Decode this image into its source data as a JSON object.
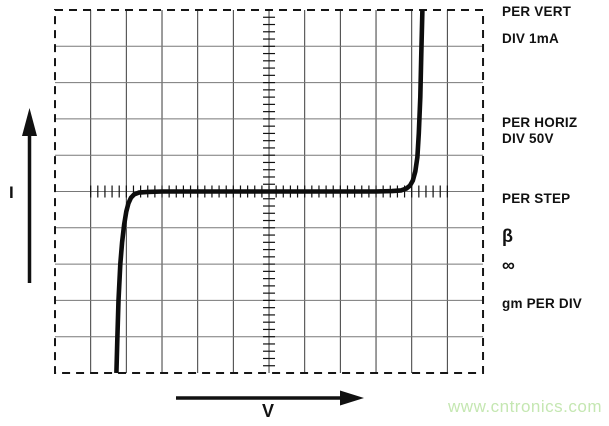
{
  "y_axis": {
    "label": "I"
  },
  "x_axis": {
    "label": "V"
  },
  "readout_panel": {
    "per_vert_label": "PER VERT",
    "per_vert_value": "DIV 1mA",
    "per_horiz_label": "PER HORIZ",
    "per_horiz_value": "DIV 50V",
    "per_step_label": "PER STEP",
    "beta_symbol": "β",
    "beta_value": "∞",
    "gm_label": "gm PER DIV"
  },
  "watermark": {
    "text": "www.cntronics.com",
    "color": "#c5e7b2"
  },
  "colors": {
    "curve": "#0d0d0d",
    "grid_vertical": "#3a3a3a",
    "grid_horizontal": "#787878",
    "border": "#161616",
    "ticks": "#111111"
  },
  "chart_data": {
    "type": "line",
    "title": "",
    "xlabel": "V",
    "ylabel": "I",
    "x_divisions": 12,
    "y_divisions": 10,
    "x_scale_per_div": "50V",
    "y_scale_per_div": "1mA",
    "x_range_div": [
      -6,
      6
    ],
    "y_range_div": [
      -5,
      5
    ],
    "grid": "on",
    "center_minor_ticks_per_div": 5,
    "minor_tick_extent_div": 5,
    "series": [
      {
        "name": "diode-iv-curve",
        "points_div": [
          [
            -4.28,
            -5
          ],
          [
            -4.25,
            -4
          ],
          [
            -4.22,
            -3
          ],
          [
            -4.17,
            -2
          ],
          [
            -4.12,
            -1.4
          ],
          [
            -4.06,
            -0.9
          ],
          [
            -4.0,
            -0.55
          ],
          [
            -3.94,
            -0.32
          ],
          [
            -3.87,
            -0.17
          ],
          [
            -3.78,
            -0.08
          ],
          [
            -3.65,
            -0.03
          ],
          [
            -3.4,
            -0.01
          ],
          [
            -3,
            0
          ],
          [
            0,
            0
          ],
          [
            3,
            0
          ],
          [
            3.45,
            0.01
          ],
          [
            3.7,
            0.03
          ],
          [
            3.85,
            0.08
          ],
          [
            3.95,
            0.16
          ],
          [
            4.03,
            0.3
          ],
          [
            4.1,
            0.55
          ],
          [
            4.16,
            0.95
          ],
          [
            4.2,
            1.6
          ],
          [
            4.24,
            2.6
          ],
          [
            4.27,
            3.8
          ],
          [
            4.3,
            5
          ]
        ]
      }
    ]
  }
}
